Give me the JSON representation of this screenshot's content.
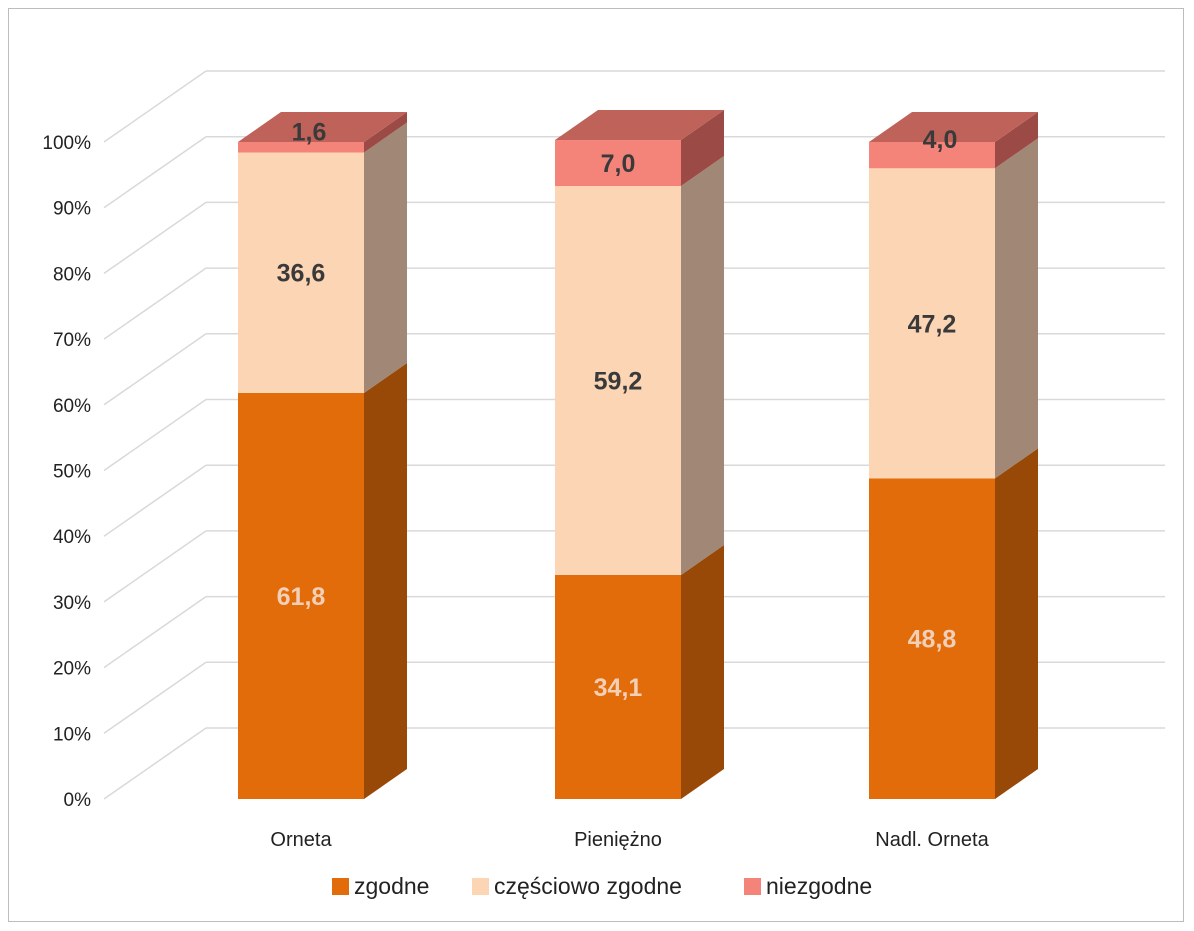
{
  "chart_data": {
    "type": "bar",
    "stacked": true,
    "three_d": true,
    "title": "",
    "xlabel": "",
    "ylabel": "",
    "categories": [
      "Orneta",
      "Pieniężno",
      "Nadl. Orneta"
    ],
    "series": [
      {
        "name": "zgodne",
        "values": [
          61.8,
          34.1,
          48.8
        ],
        "labels": [
          "61,8",
          "34,1",
          "48,8"
        ],
        "color": "#E36C0A",
        "side_color": "#984807",
        "top_color": "#C25A08",
        "label_color": "#F2D0B8"
      },
      {
        "name": "częściowo zgodne",
        "values": [
          36.6,
          59.2,
          47.2
        ],
        "labels": [
          "36,6",
          "59,2",
          "47,2"
        ],
        "color": "#FCD5B5",
        "side_color": "#A08776",
        "top_color": "#E8C0A0",
        "label_color": "#3A3A3A"
      },
      {
        "name": "niezgodne",
        "values": [
          1.6,
          7.0,
          4.0
        ],
        "labels": [
          "1,6",
          "7,0",
          "4,0"
        ],
        "color": "#F4837A",
        "side_color": "#9B4A46",
        "top_color": "#BF6259",
        "label_color": "#3A3A3A"
      }
    ],
    "y_ticks": [
      "0%",
      "10%",
      "20%",
      "30%",
      "40%",
      "50%",
      "60%",
      "70%",
      "80%",
      "90%",
      "100%"
    ],
    "ylim": [
      0,
      100
    ],
    "grid": true,
    "grid_color": "#D9D9D9",
    "legend": "bottom"
  }
}
